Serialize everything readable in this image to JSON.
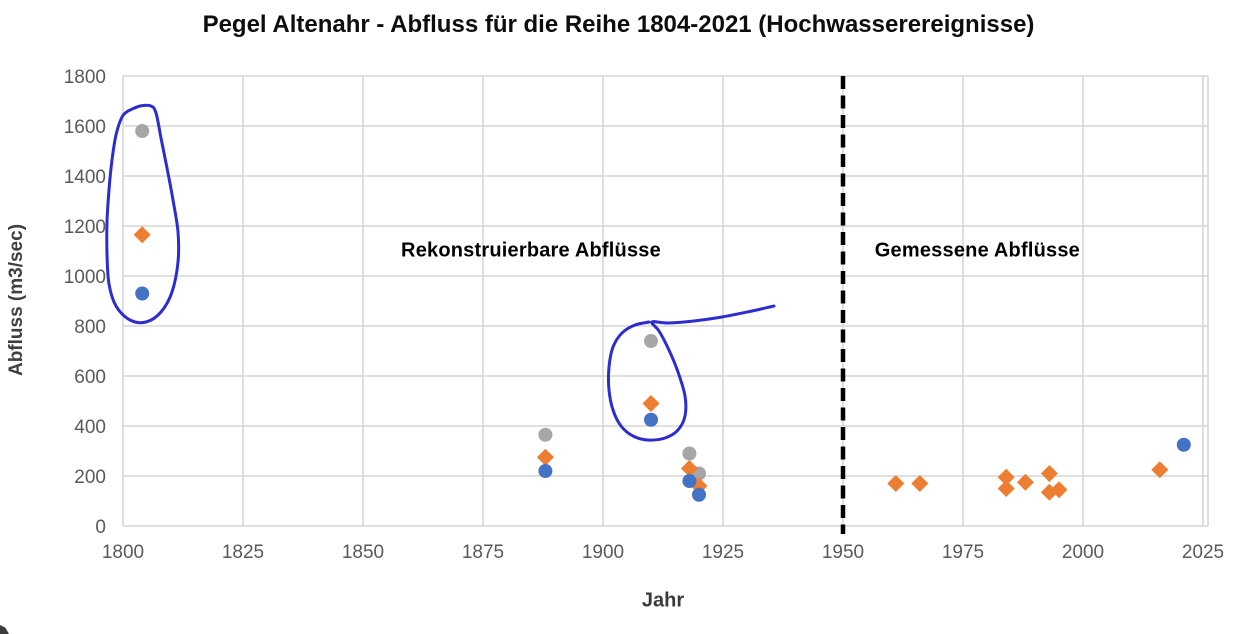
{
  "chart_data": {
    "type": "scatter",
    "title": "Pegel Altenahr - Abfluss für die Reihe 1804-2021 (Hochwasserereignisse)",
    "xlabel": "Jahr",
    "ylabel": "Abfluss (m3/sec)",
    "xlim": [
      1800,
      2025
    ],
    "ylim": [
      0,
      1800
    ],
    "x_ticks": [
      1800,
      1825,
      1850,
      1875,
      1900,
      1925,
      1950,
      1975,
      2000,
      2025
    ],
    "y_ticks": [
      0,
      200,
      400,
      600,
      800,
      1000,
      1200,
      1400,
      1600,
      1800
    ],
    "grid": true,
    "legend": "none",
    "series": [
      {
        "name": "gray-circle-series",
        "marker": "circle",
        "color": "#a6a6a6",
        "points": [
          [
            1804,
            1580
          ],
          [
            1888,
            365
          ],
          [
            1910,
            740
          ],
          [
            1918,
            290
          ],
          [
            1920,
            210
          ]
        ]
      },
      {
        "name": "orange-diamond-series",
        "marker": "diamond",
        "color": "#ed7d31",
        "points": [
          [
            1804,
            1165
          ],
          [
            1888,
            275
          ],
          [
            1910,
            490
          ],
          [
            1918,
            230
          ],
          [
            1920,
            160
          ],
          [
            1961,
            170
          ],
          [
            1966,
            170
          ],
          [
            1984,
            195
          ],
          [
            1984,
            150
          ],
          [
            1988,
            175
          ],
          [
            1993,
            210
          ],
          [
            1993,
            135
          ],
          [
            1995,
            145
          ],
          [
            2016,
            225
          ]
        ]
      },
      {
        "name": "blue-circle-series",
        "marker": "circle",
        "color": "#4472c4",
        "points": [
          [
            1804,
            930
          ],
          [
            1888,
            220
          ],
          [
            1910,
            425
          ],
          [
            1918,
            180
          ],
          [
            1920,
            125
          ],
          [
            2021,
            325
          ]
        ]
      }
    ],
    "divider": {
      "x": 1950,
      "style": "dashed",
      "color": "#000000"
    },
    "annotations": [
      {
        "id": "reconstructed",
        "text": "Rekonstruierbare Abflüsse",
        "x": 1885,
        "y": 1100
      },
      {
        "id": "measured",
        "text": "Gemessene Abflüsse",
        "x": 1978,
        "y": 1100
      }
    ],
    "hand_drawn_marks": [
      {
        "shape": "freehand-circle",
        "color": "#2121cd",
        "around": "1804 point cluster"
      },
      {
        "shape": "freehand-circle-with-tail",
        "color": "#2121cd",
        "around": "1910 point cluster"
      }
    ]
  }
}
